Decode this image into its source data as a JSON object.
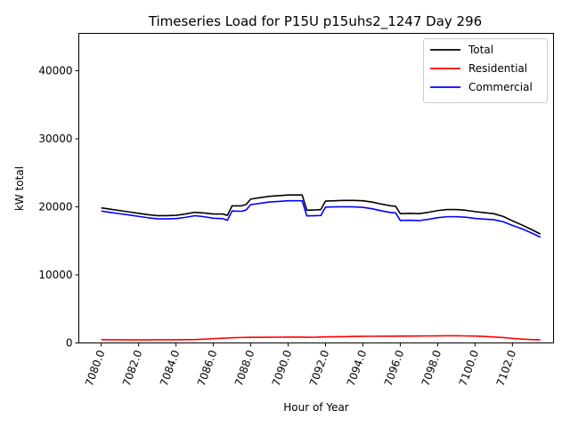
{
  "chart_data": {
    "type": "line",
    "title": "Timeseries Load for P15U p15uhs2_1247  Day 296",
    "xlabel": "Hour of Year",
    "ylabel": "kW total",
    "xlim": [
      7078.8,
      7104.2
    ],
    "ylim": [
      0,
      45500
    ],
    "x_ticks": [
      7080,
      7082,
      7084,
      7086,
      7088,
      7090,
      7092,
      7094,
      7096,
      7098,
      7100,
      7102
    ],
    "x_tick_labels": [
      "7080.0",
      "7082.0",
      "7084.0",
      "7086.0",
      "7088.0",
      "7090.0",
      "7092.0",
      "7094.0",
      "7096.0",
      "7098.0",
      "7100.0",
      "7102.0"
    ],
    "y_ticks": [
      0,
      10000,
      20000,
      30000,
      40000
    ],
    "y_tick_labels": [
      "0",
      "10000",
      "20000",
      "30000",
      "40000"
    ],
    "legend_position": "top-right",
    "x": [
      7080,
      7080.5,
      7081,
      7081.5,
      7082,
      7082.5,
      7083,
      7083.5,
      7084,
      7084.5,
      7085,
      7085.5,
      7086,
      7086.5,
      7086.75,
      7087,
      7087.5,
      7087.75,
      7088,
      7088.5,
      7089,
      7089.5,
      7090,
      7090.5,
      7090.75,
      7091,
      7091.5,
      7091.75,
      7092,
      7092.5,
      7093,
      7093.5,
      7094,
      7094.5,
      7095,
      7095.5,
      7095.75,
      7096,
      7096.5,
      7097,
      7097.5,
      7098,
      7098.5,
      7099,
      7099.5,
      7100,
      7100.5,
      7101,
      7101.5,
      7102,
      7102.5,
      7103,
      7103.5
    ],
    "series": [
      {
        "name": "Total",
        "color": "#000000",
        "values": [
          19850,
          19650,
          19450,
          19250,
          19050,
          18850,
          18700,
          18700,
          18750,
          18950,
          19200,
          19100,
          18950,
          18950,
          18750,
          20150,
          20150,
          20350,
          21150,
          21350,
          21550,
          21650,
          21750,
          21750,
          21750,
          19500,
          19550,
          19600,
          20850,
          20900,
          20950,
          20950,
          20900,
          20700,
          20400,
          20150,
          20100,
          19000,
          19050,
          19000,
          19200,
          19450,
          19600,
          19600,
          19500,
          19300,
          19150,
          19000,
          18600,
          17950,
          17350,
          16700,
          16000
        ]
      },
      {
        "name": "Residential",
        "color": "#ff0000",
        "values": [
          480,
          470,
          460,
          450,
          450,
          455,
          460,
          465,
          470,
          480,
          500,
          550,
          620,
          690,
          720,
          760,
          800,
          810,
          820,
          830,
          840,
          850,
          860,
          860,
          860,
          830,
          850,
          870,
          890,
          910,
          930,
          950,
          970,
          980,
          990,
          990,
          990,
          1000,
          1010,
          1020,
          1030,
          1040,
          1050,
          1050,
          1030,
          1000,
          950,
          880,
          790,
          670,
          570,
          500,
          460
        ]
      },
      {
        "name": "Commercial",
        "color": "#0000ff",
        "values": [
          19380,
          19180,
          18990,
          18800,
          18600,
          18400,
          18250,
          18230,
          18280,
          18450,
          18700,
          18550,
          18330,
          18260,
          18030,
          19390,
          19350,
          19540,
          20330,
          20520,
          20710,
          20800,
          20890,
          20890,
          20890,
          18670,
          18700,
          18730,
          19960,
          19990,
          20020,
          20000,
          19930,
          19720,
          19410,
          19160,
          19110,
          18000,
          18040,
          17980,
          18170,
          18410,
          18550,
          18550,
          18470,
          18300,
          18200,
          18120,
          17810,
          17280,
          16780,
          16200,
          15540
        ]
      }
    ]
  }
}
